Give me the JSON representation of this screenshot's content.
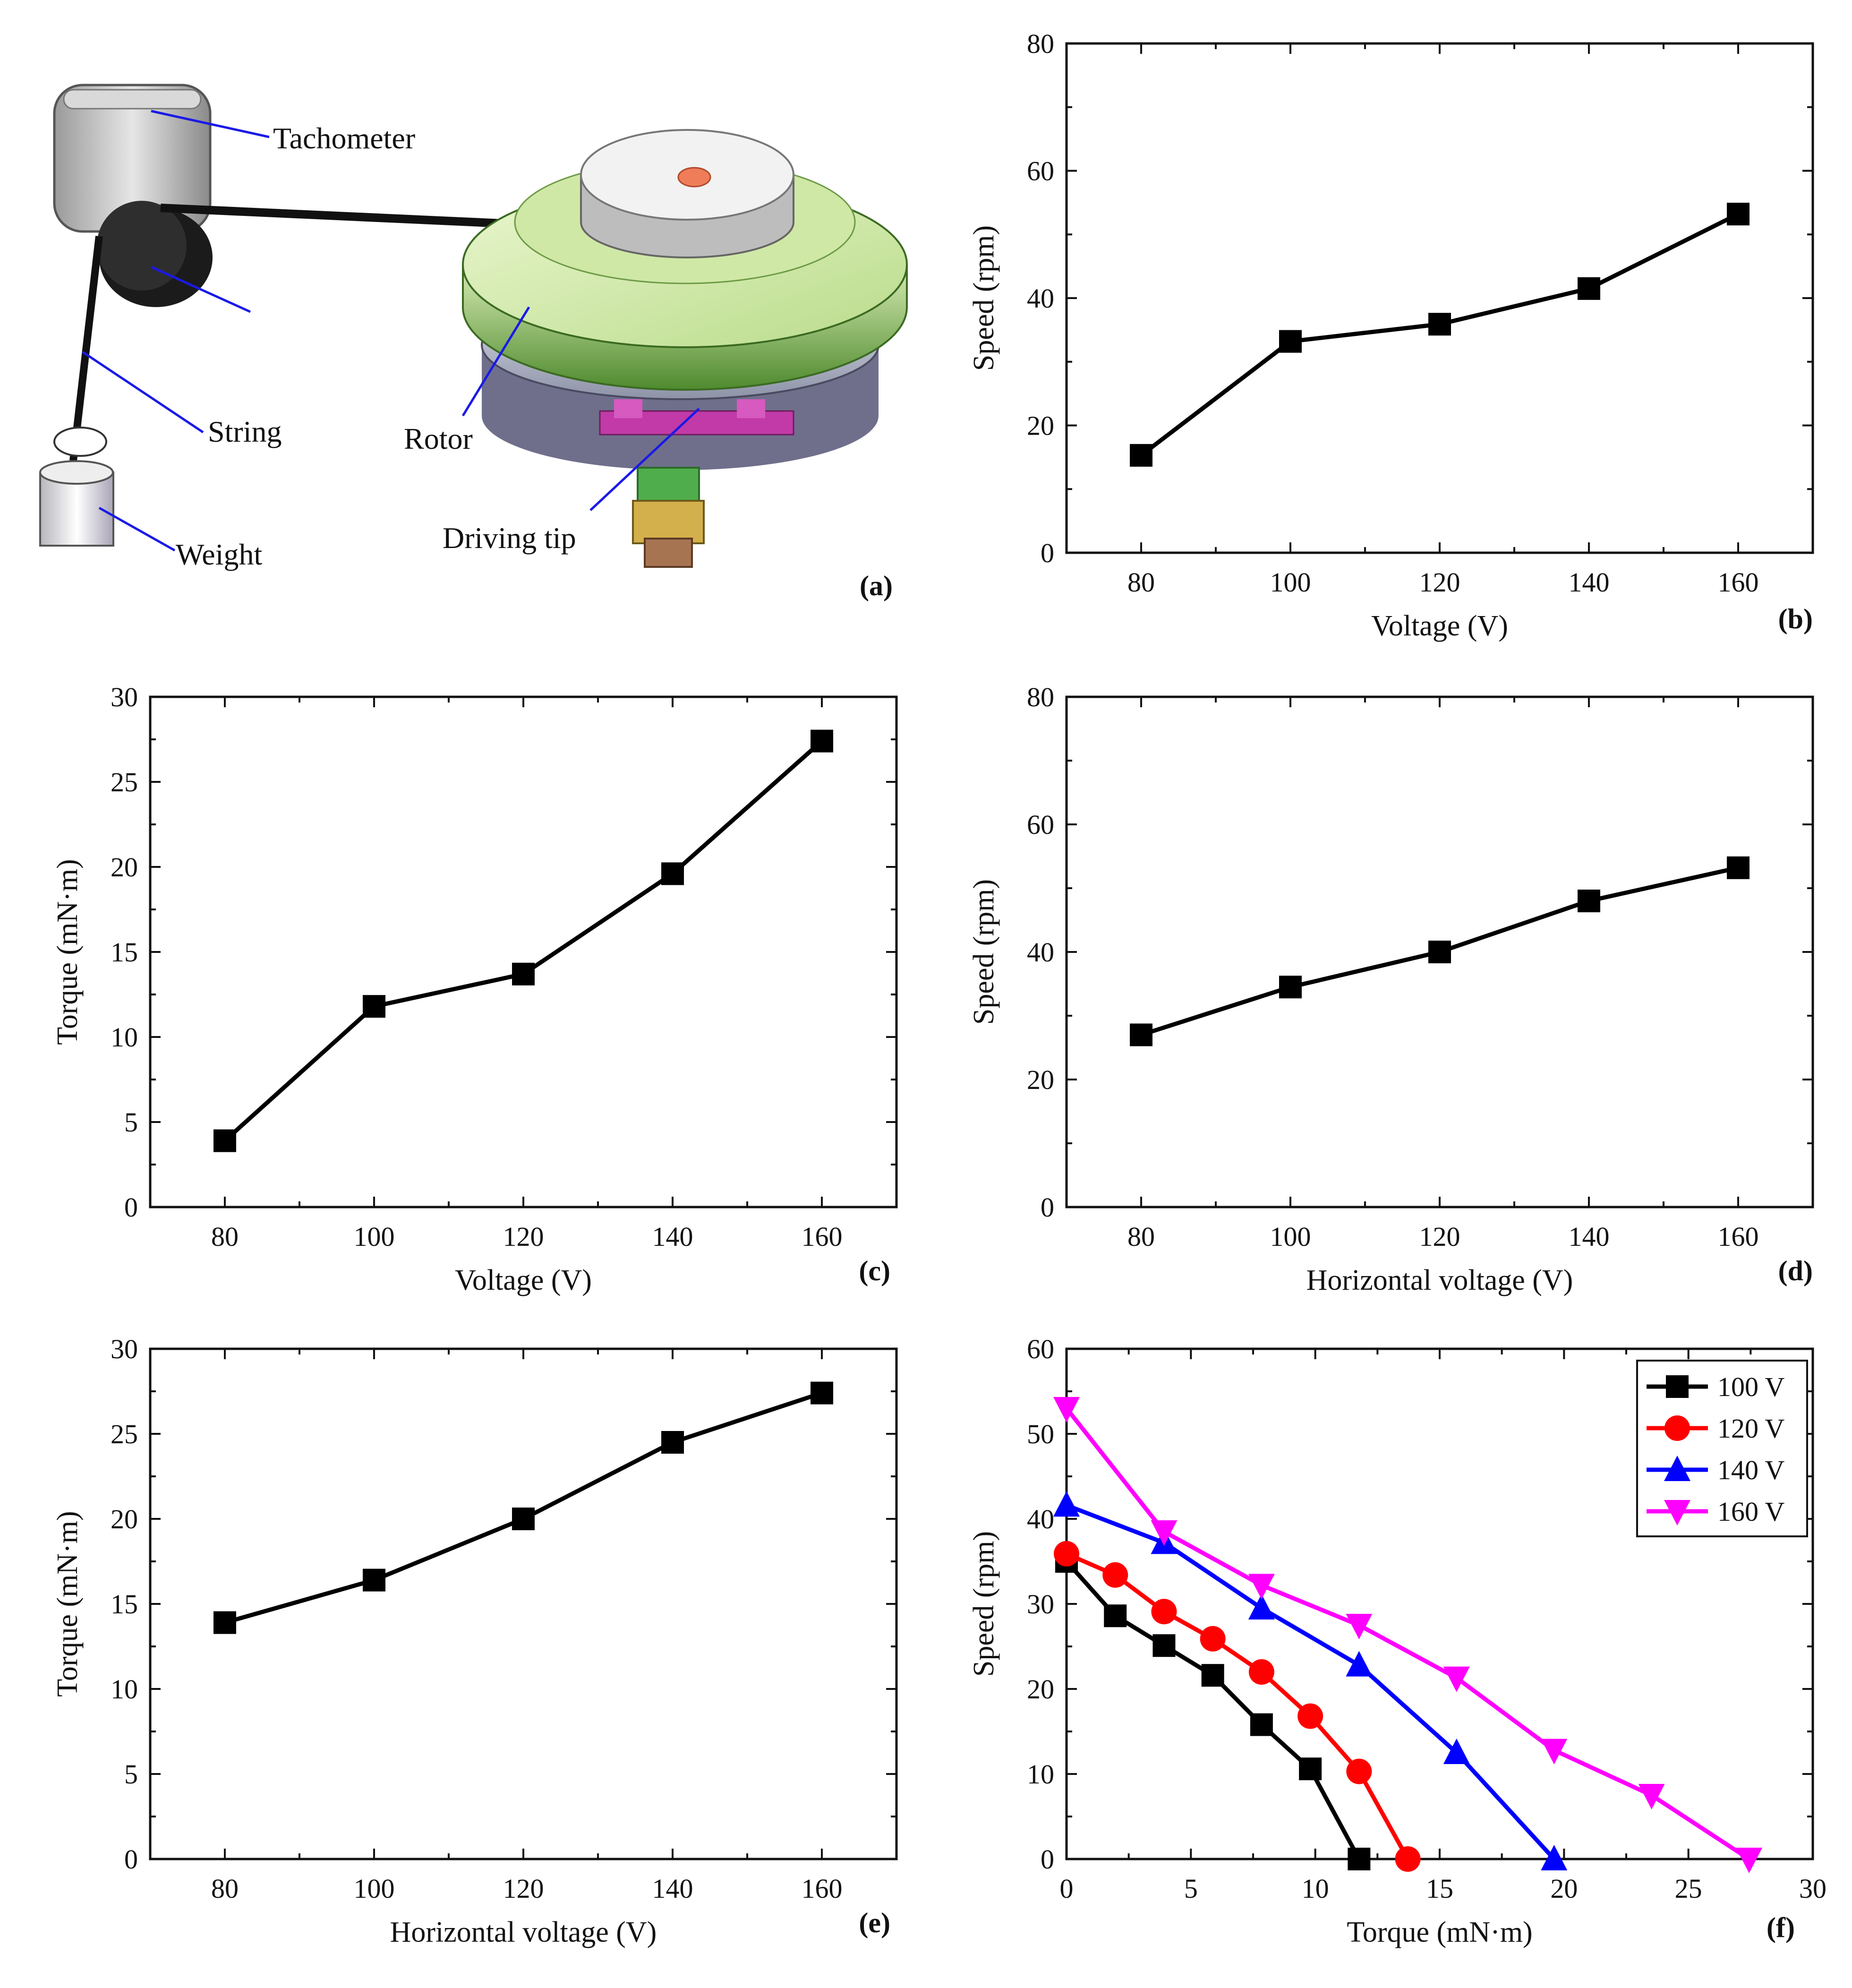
{
  "schematic": {
    "panel_tag": "(a)",
    "labels": {
      "tachometer": "Tachometer",
      "string": "String",
      "weight": "Weight",
      "rotor": "Rotor",
      "driving_tip": "Driving tip"
    }
  },
  "chart_data": [
    {
      "id": "b",
      "type": "line",
      "panel_tag": "(b)",
      "xlabel": "Voltage (V)",
      "ylabel": "Speed (rpm)",
      "xlim": [
        70,
        170
      ],
      "ylim": [
        0,
        80
      ],
      "xticks": [
        80,
        100,
        120,
        140,
        160
      ],
      "yticks": [
        0,
        20,
        40,
        60,
        80
      ],
      "series": [
        {
          "name": "",
          "color": "#000000",
          "marker": "square",
          "x": [
            80,
            100,
            120,
            140,
            160
          ],
          "y": [
            15.3,
            33.2,
            35.9,
            41.5,
            53.2
          ]
        }
      ]
    },
    {
      "id": "c",
      "type": "line",
      "panel_tag": "(c)",
      "xlabel": "Voltage (V)",
      "ylabel": "Torque (mN·m)",
      "xlim": [
        70,
        170
      ],
      "ylim": [
        0,
        30
      ],
      "xticks": [
        80,
        100,
        120,
        140,
        160
      ],
      "yticks": [
        0,
        5,
        10,
        15,
        20,
        25,
        30
      ],
      "series": [
        {
          "name": "",
          "color": "#000000",
          "marker": "square",
          "x": [
            80,
            100,
            120,
            140,
            160
          ],
          "y": [
            3.9,
            11.8,
            13.7,
            19.6,
            27.4
          ]
        }
      ]
    },
    {
      "id": "d",
      "type": "line",
      "panel_tag": "(d)",
      "xlabel": "Horizontal voltage (V)",
      "ylabel": "Speed (rpm)",
      "xlim": [
        70,
        170
      ],
      "ylim": [
        0,
        80
      ],
      "xticks": [
        80,
        100,
        120,
        140,
        160
      ],
      "yticks": [
        0,
        20,
        40,
        60,
        80
      ],
      "series": [
        {
          "name": "",
          "color": "#000000",
          "marker": "square",
          "x": [
            80,
            100,
            120,
            140,
            160
          ],
          "y": [
            27.0,
            34.5,
            40.0,
            48.0,
            53.2
          ]
        }
      ]
    },
    {
      "id": "e",
      "type": "line",
      "panel_tag": "(e)",
      "xlabel": "Horizontal voltage (V)",
      "ylabel": "Torque (mN·m)",
      "xlim": [
        70,
        170
      ],
      "ylim": [
        0,
        30
      ],
      "xticks": [
        80,
        100,
        120,
        140,
        160
      ],
      "yticks": [
        0,
        5,
        10,
        15,
        20,
        25,
        30
      ],
      "series": [
        {
          "name": "",
          "color": "#000000",
          "marker": "square",
          "x": [
            80,
            100,
            120,
            140,
            160
          ],
          "y": [
            13.9,
            16.4,
            20.0,
            24.5,
            27.4
          ]
        }
      ]
    },
    {
      "id": "f",
      "type": "line",
      "panel_tag": "(f)",
      "xlabel": "Torque (mN·m)",
      "ylabel": "Speed (rpm)",
      "xlim": [
        0,
        30
      ],
      "ylim": [
        0,
        60
      ],
      "xticks": [
        0,
        5,
        10,
        15,
        20,
        25,
        30
      ],
      "yticks": [
        0,
        10,
        20,
        30,
        40,
        50,
        60
      ],
      "legend": "top-right",
      "series": [
        {
          "name": "100 V",
          "color": "#000000",
          "marker": "square",
          "x": [
            0,
            1.96,
            3.92,
            5.88,
            7.84,
            9.8,
            11.76
          ],
          "y": [
            35.0,
            28.6,
            25.1,
            21.6,
            15.8,
            10.6,
            0
          ]
        },
        {
          "name": "120 V",
          "color": "#ff0000",
          "marker": "circle",
          "x": [
            0,
            1.96,
            3.92,
            5.88,
            7.84,
            9.8,
            11.76,
            13.72
          ],
          "y": [
            35.9,
            33.4,
            29.1,
            25.9,
            22.0,
            16.8,
            10.3,
            0
          ]
        },
        {
          "name": "140 V",
          "color": "#0000ff",
          "marker": "triangle-up",
          "x": [
            0,
            3.92,
            7.84,
            11.76,
            15.68,
            19.6
          ],
          "y": [
            41.6,
            37.2,
            29.5,
            22.8,
            12.5,
            0
          ]
        },
        {
          "name": "160 V",
          "color": "#ff00ff",
          "marker": "triangle-down",
          "x": [
            0,
            3.92,
            7.84,
            11.76,
            15.68,
            19.6,
            23.52,
            27.44
          ],
          "y": [
            53.0,
            38.5,
            32.2,
            27.5,
            21.3,
            12.8,
            7.5,
            0
          ]
        }
      ]
    }
  ]
}
